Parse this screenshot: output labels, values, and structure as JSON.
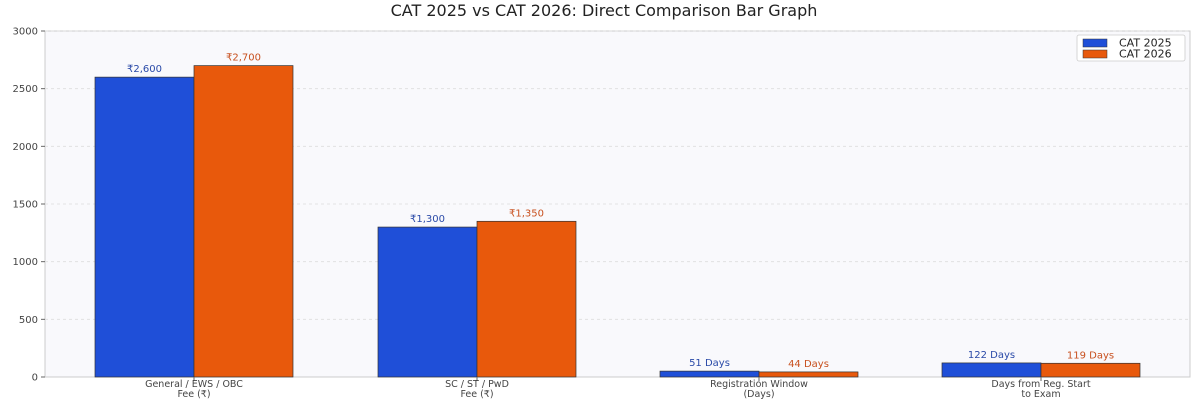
{
  "chart_data": {
    "type": "bar",
    "title": "CAT 2025 vs CAT 2026: Direct Comparison Bar Graph",
    "xlabel": "",
    "ylabel": "",
    "ylim": [
      0,
      3000
    ],
    "yticks": [
      0,
      500,
      1000,
      1500,
      2000,
      2500,
      3000
    ],
    "grid": true,
    "legend": "top-right",
    "categories": [
      [
        "General / EWS / OBC",
        "Fee (₹)"
      ],
      [
        "SC / ST / PwD",
        "Fee (₹)"
      ],
      [
        "Registration Window",
        "(Days)"
      ],
      [
        "Days from Reg. Start",
        "to Exam"
      ]
    ],
    "series": [
      {
        "name": "CAT 2025",
        "color": "#1f4fd8",
        "label_color": "#2a4aa8",
        "values": [
          2600,
          1300,
          51,
          122
        ],
        "labels": [
          "₹2,600",
          "₹1,300",
          "51 Days",
          "122 Days"
        ]
      },
      {
        "name": "CAT 2026",
        "color": "#e8590c",
        "label_color": "#c8501e",
        "values": [
          2700,
          1350,
          44,
          119
        ],
        "labels": [
          "₹2,700",
          "₹1,350",
          "44 Days",
          "119 Days"
        ]
      }
    ]
  }
}
